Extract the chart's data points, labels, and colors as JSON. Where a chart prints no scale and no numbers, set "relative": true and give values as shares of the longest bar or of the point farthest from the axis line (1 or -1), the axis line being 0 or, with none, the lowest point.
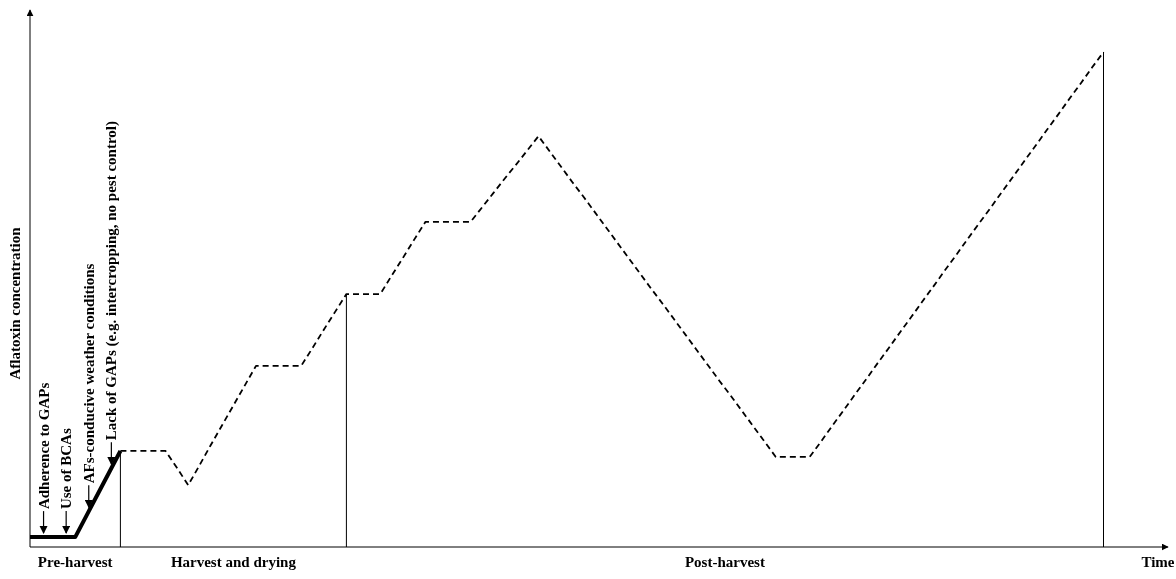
{
  "chart_data": {
    "type": "line",
    "relative": true,
    "xlabel": "Time",
    "ylabel": "Aflatoxin concentration",
    "categories": [
      null,
      null,
      null,
      null,
      null,
      null,
      null,
      null,
      null,
      null,
      null,
      null,
      null,
      null,
      null,
      null,
      null,
      null,
      null,
      null,
      null,
      null,
      null,
      null,
      null,
      null,
      null,
      null,
      null,
      null,
      null,
      null,
      null,
      null,
      null,
      null,
      null,
      null,
      null,
      null,
      null,
      null,
      null,
      null,
      null,
      null,
      null,
      null,
      null,
      null,
      null,
      null,
      null,
      null,
      null,
      null,
      null,
      null,
      null,
      null,
      null,
      null,
      null,
      null,
      null,
      null,
      null,
      null,
      null,
      null,
      null,
      null,
      null,
      null,
      null,
      null,
      null,
      null,
      null,
      null,
      null,
      null,
      null,
      null,
      null,
      null,
      null,
      null,
      null,
      null,
      null,
      null,
      null,
      null,
      null,
      null
    ],
    "series": [
      {
        "color": "#000000",
        "line_style": "solid",
        "values": [
          0.02,
          0.02,
          0.02,
          0.02,
          0.02,
          0.0635,
          0.107,
          0.1505,
          0.194,
          null,
          null,
          null,
          null,
          null,
          null,
          null,
          null,
          null,
          null,
          null,
          null,
          null,
          null,
          null,
          null,
          null,
          null,
          null,
          null,
          null,
          null,
          null,
          null,
          null,
          null,
          null,
          null,
          null,
          null,
          null,
          null,
          null,
          null,
          null,
          null,
          null,
          null,
          null,
          null,
          null,
          null,
          null,
          null,
          null,
          null,
          null,
          null,
          null,
          null,
          null,
          null,
          null,
          null,
          null,
          null,
          null,
          null,
          null,
          null,
          null,
          null,
          null,
          null,
          null,
          null,
          null,
          null,
          null,
          null,
          null,
          null,
          null,
          null,
          null,
          null,
          null,
          null,
          null,
          null,
          null,
          null,
          null,
          null,
          null,
          null,
          null
        ]
      },
      {
        "color": "#000000",
        "line_style": "dashed",
        "values": [
          null,
          null,
          null,
          null,
          null,
          null,
          null,
          null,
          0.194,
          0.194,
          0.194,
          0.194,
          0.194,
          0.16,
          0.125,
          0.165,
          0.206,
          0.246,
          0.286,
          0.326,
          0.366,
          0.366,
          0.366,
          0.366,
          0.366,
          0.402,
          0.439,
          0.475,
          0.511,
          0.511,
          0.511,
          0.511,
          0.548,
          0.584,
          0.621,
          0.657,
          0.657,
          0.657,
          0.657,
          0.657,
          0.686,
          0.715,
          0.744,
          0.772,
          0.801,
          0.83,
          0.799,
          0.768,
          0.737,
          0.707,
          0.676,
          0.645,
          0.614,
          0.583,
          0.552,
          0.521,
          0.491,
          0.46,
          0.429,
          0.398,
          0.367,
          0.336,
          0.306,
          0.275,
          0.244,
          0.213,
          0.182,
          0.182,
          0.182,
          0.182,
          0.213,
          0.245,
          0.276,
          0.308,
          0.339,
          0.371,
          0.402,
          0.434,
          0.465,
          0.497,
          0.528,
          0.56,
          0.591,
          0.623,
          0.654,
          0.685,
          0.717,
          0.748,
          0.78,
          0.811,
          0.843,
          0.874,
          0.906,
          0.937,
          0.969,
          1
        ]
      }
    ],
    "annotations": [
      "Adherence to GAPs",
      "Use of BCAs",
      "AFs-conducive weather conditions",
      "Lack of GAPs (e.g. intercropping, no pest control)",
      "Pre-harvest",
      "Harvest and drying",
      "Post-harvest"
    ]
  }
}
